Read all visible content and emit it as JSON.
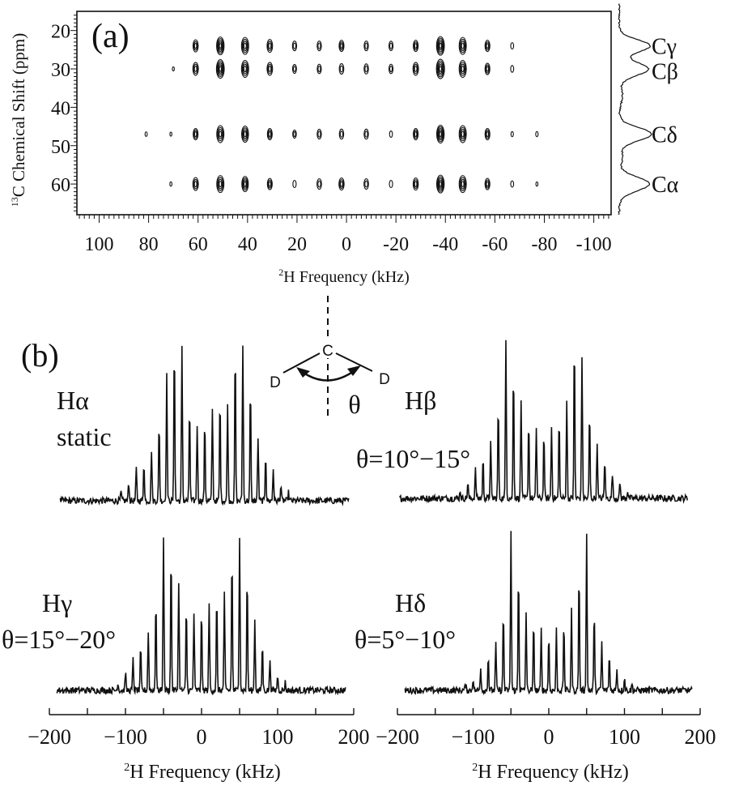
{
  "chart_data": [
    {
      "type": "heatmap",
      "panel_label": "(a)",
      "xlabel_sup": "2",
      "xlabel": "H Frequency (kHz)",
      "ylabel_sup": "13",
      "ylabel": "C Chemical Shift (ppm)",
      "xlim": [
        109,
        -107
      ],
      "ylim": [
        15,
        68
      ],
      "x_ticks": [
        100,
        80,
        60,
        40,
        20,
        0,
        -20,
        -40,
        -60,
        -80,
        -100
      ],
      "y_ticks": [
        20,
        30,
        40,
        50,
        60
      ],
      "rows": [
        {
          "label": "Cγ",
          "ppm": 24,
          "peaks_khz": [
            61,
            51,
            41,
            31,
            21,
            11,
            2,
            -8,
            -18,
            -28,
            -38,
            -47,
            -57,
            -67
          ],
          "intensity": [
            0.55,
            0.9,
            0.85,
            0.6,
            0.4,
            0.4,
            0.5,
            0.4,
            0.38,
            0.5,
            0.95,
            0.85,
            0.5,
            0.2
          ]
        },
        {
          "label": "Cβ",
          "ppm": 30,
          "peaks_khz": [
            70,
            61,
            51,
            41,
            31,
            21,
            11,
            2,
            -8,
            -18,
            -28,
            -38,
            -47,
            -57,
            -67
          ],
          "intensity": [
            0.05,
            0.6,
            0.95,
            0.85,
            0.6,
            0.35,
            0.38,
            0.45,
            0.42,
            0.38,
            0.6,
            1.0,
            0.85,
            0.5,
            0.22
          ]
        },
        {
          "label": "Cδ",
          "ppm": 47,
          "peaks_khz": [
            81,
            71,
            61,
            51,
            41,
            31,
            21,
            11,
            2,
            -8,
            -18,
            -28,
            -38,
            -47,
            -57,
            -67,
            -77
          ],
          "intensity": [
            0.08,
            0.05,
            0.5,
            0.85,
            0.8,
            0.5,
            0.3,
            0.4,
            0.42,
            0.42,
            0.2,
            0.5,
            0.9,
            0.85,
            0.5,
            0.12,
            0.12
          ]
        },
        {
          "label": "Cα",
          "ppm": 60,
          "peaks_khz": [
            71,
            61,
            51,
            41,
            31,
            21,
            11,
            2,
            -8,
            -18,
            -28,
            -38,
            -47,
            -57,
            -67,
            -77
          ],
          "intensity": [
            0.07,
            0.6,
            0.85,
            0.75,
            0.5,
            0.25,
            0.45,
            0.55,
            0.45,
            0.25,
            0.55,
            0.9,
            0.85,
            0.5,
            0.2,
            0.06
          ]
        }
      ],
      "projection_labels": [
        "Cγ",
        "Cβ",
        "Cδ",
        "Cα"
      ]
    },
    {
      "type": "line",
      "panel_label": "(b)",
      "xlabel_sup": "2",
      "xlabel": "H Frequency (kHz)",
      "xlim": [
        -200,
        200
      ],
      "x_ticks": [
        -200,
        -100,
        0,
        100,
        200
      ],
      "sideband_khz": [
        -110,
        -100,
        -90,
        -80,
        -70,
        -60,
        -50,
        -40,
        -30,
        -20,
        -10,
        0,
        10,
        20,
        30,
        40,
        50,
        60,
        70,
        80,
        90,
        100,
        110
      ],
      "series": [
        {
          "name": "Hα",
          "name2": "static",
          "values": [
            0.05,
            0.12,
            0.2,
            0.25,
            0.32,
            0.5,
            0.78,
            1.0,
            0.95,
            0.6,
            0.48,
            0.5,
            0.58,
            0.64,
            0.6,
            0.95,
            0.98,
            0.72,
            0.4,
            0.3,
            0.2,
            0.1,
            0.05
          ]
        },
        {
          "name": "Hβ",
          "name2": "θ=10°−15°",
          "values": [
            0.05,
            0.1,
            0.18,
            0.25,
            0.35,
            0.6,
            1.0,
            0.82,
            0.62,
            0.5,
            0.45,
            0.42,
            0.45,
            0.5,
            0.62,
            1.0,
            0.9,
            0.55,
            0.35,
            0.25,
            0.16,
            0.1,
            0.05
          ]
        },
        {
          "name": "Hγ",
          "name2": "θ=15°−20°",
          "values": [
            0.05,
            0.12,
            0.2,
            0.28,
            0.38,
            0.6,
            1.0,
            0.9,
            0.7,
            0.55,
            0.5,
            0.52,
            0.55,
            0.6,
            0.62,
            0.88,
            1.0,
            0.75,
            0.45,
            0.3,
            0.2,
            0.1,
            0.05
          ]
        },
        {
          "name": "Hδ",
          "name2": "θ=5°−10°",
          "values": [
            0.04,
            0.08,
            0.15,
            0.22,
            0.3,
            0.5,
            1.0,
            0.75,
            0.5,
            0.42,
            0.38,
            0.35,
            0.38,
            0.42,
            0.5,
            0.75,
            1.0,
            0.5,
            0.3,
            0.22,
            0.14,
            0.08,
            0.04
          ]
        }
      ]
    }
  ],
  "diagram": {
    "atom_c": "C",
    "atom_d_left": "D",
    "atom_d_right": "D",
    "angle": "θ"
  }
}
